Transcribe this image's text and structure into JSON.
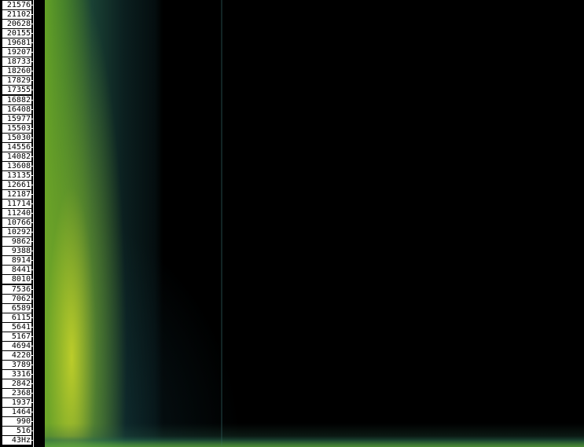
{
  "frequency_axis": {
    "labels": [
      "21576",
      "21102",
      "20628",
      "20155",
      "19681",
      "19207",
      "18733",
      "18260",
      "17829",
      "17355",
      "16882",
      "16408",
      "15977",
      "15503",
      "15030",
      "14556",
      "14082",
      "13608",
      "13135",
      "12661",
      "12187",
      "11714",
      "11240",
      "10766",
      "10292",
      "9862",
      "9388",
      "8914",
      "8441",
      "8010",
      "7536",
      "7062",
      "6589",
      "6115",
      "5641",
      "5167",
      "4694",
      "4220",
      "3789",
      "3316",
      "2842",
      "2368",
      "1937",
      "1464",
      "990",
      "516",
      "43Hz"
    ]
  },
  "colors": {
    "background": "#000000",
    "label_background": "#ffffff",
    "label_text": "#000000",
    "energy_high": "#c8d628",
    "energy_mid": "#4f9a3c",
    "energy_low": "#1a4c50"
  }
}
